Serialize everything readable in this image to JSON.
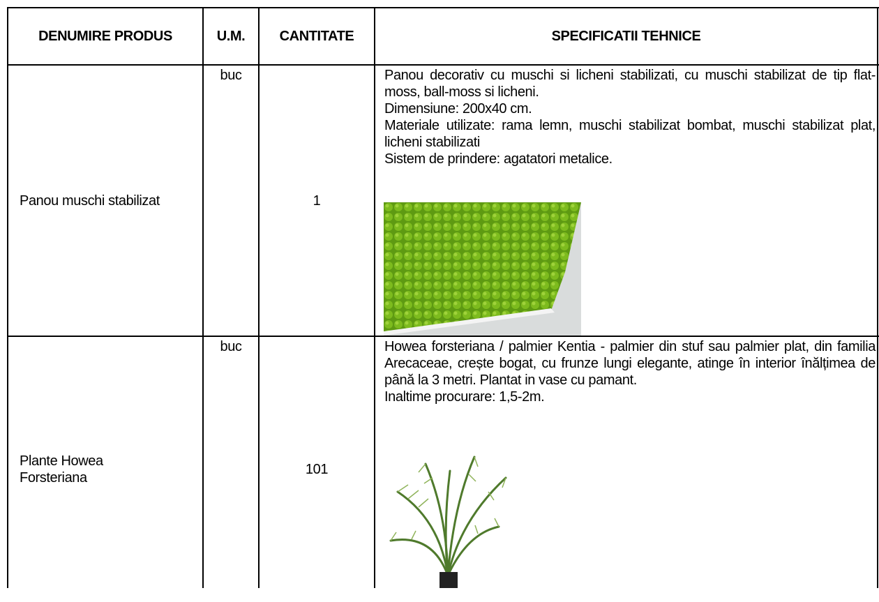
{
  "table": {
    "header": [
      "DENUMIRE PRODUS",
      "U.M.",
      "CANTITATE",
      "SPECIFICATII TEHNICE"
    ],
    "rows": [
      {
        "product": "Panou muschi stabilizat",
        "unit": "buc",
        "quantity": 1,
        "specs": [
          "Panou decorativ cu muschi si licheni stabilizati, cu muschi stabilizat de tip flat-moss, ball-moss si licheni.",
          "Dimensiune: 200x40 cm.",
          "Materiale utilizate: rama lemn, muschi stabilizat bombat, muschi stabilizat plat, licheni stabilizati",
          "Sistem de prindere: agatatori metalice."
        ]
      },
      {
        "product": "Plante Howea Forsteriana",
        "unit": "buc",
        "quantity": 101,
        "specs": [
          "Howea forsteriana / palmier Kentia - palmier din stuf sau palmier plat, din familia  Arecaceae, crește bogat, cu frunze lungi elegante, atinge în interior înălțimea de până la 3 metri. Plantat in vase cu pamant.",
          "Inaltime procurare: 1,5-2m."
        ]
      }
    ]
  }
}
